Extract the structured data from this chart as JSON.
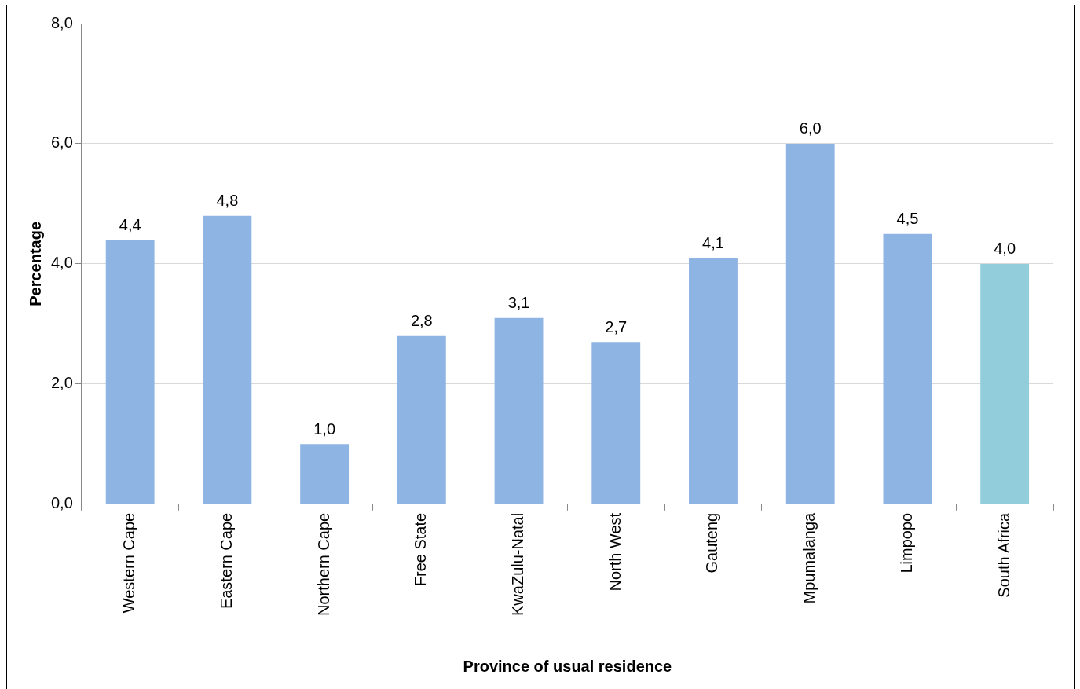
{
  "chart_data": {
    "type": "bar",
    "xlabel": "Province of usual residence",
    "ylabel": "Percentage",
    "categories": [
      "Western Cape",
      "Eastern Cape",
      "Northern Cape",
      "Free State",
      "KwaZulu-Natal",
      "North West",
      "Gauteng",
      "Mpumalanga",
      "Limpopo",
      "South Africa"
    ],
    "values": [
      4.4,
      4.8,
      1.0,
      2.8,
      3.1,
      2.7,
      4.1,
      6.0,
      4.5,
      4.0
    ],
    "colors": [
      "#8eb4e3",
      "#8eb4e3",
      "#8eb4e3",
      "#8eb4e3",
      "#8eb4e3",
      "#8eb4e3",
      "#8eb4e3",
      "#8eb4e3",
      "#8eb4e3",
      "#92cddc"
    ],
    "value_labels": [
      "4,4",
      "4,8",
      "1,0",
      "2,8",
      "3,1",
      "2,7",
      "4,1",
      "6,0",
      "4,5",
      "4,0"
    ],
    "ylim": [
      0,
      8
    ],
    "yticks": [
      {
        "value": 0,
        "label": "0,0"
      },
      {
        "value": 2,
        "label": "2,0"
      },
      {
        "value": 4,
        "label": "4,0"
      },
      {
        "value": 6,
        "label": "6,0"
      },
      {
        "value": 8,
        "label": "8,0"
      }
    ],
    "grid": "y",
    "legend": false
  }
}
